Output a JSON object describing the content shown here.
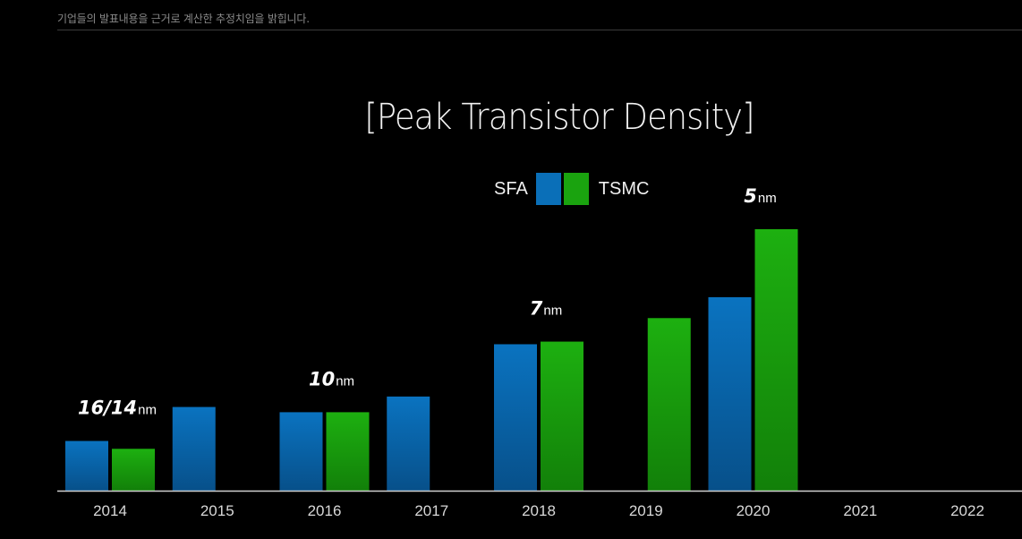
{
  "caption": "기업들의 발표내용을 근거로 계산한 추정치임을 밝힙니다.",
  "colors": {
    "background": "#000000",
    "sfa": "#0a6fb8",
    "tsmc": "#1aa30f",
    "axis": "#cfcfcf"
  },
  "legend": {
    "sfa_label": "SFA",
    "tsmc_label": "TSMC"
  },
  "chart_data": {
    "type": "bar",
    "title": "[Peak Transistor Density]",
    "categories": [
      "2014",
      "2015",
      "2016",
      "2017",
      "2018",
      "2019",
      "2020",
      "2021",
      "2022"
    ],
    "series": [
      {
        "name": "SFA",
        "values": [
          19,
          32,
          30,
          36,
          56,
          null,
          74,
          null,
          null
        ]
      },
      {
        "name": "TSMC",
        "values": [
          16,
          null,
          30,
          null,
          57,
          66,
          100,
          null,
          null
        ]
      }
    ],
    "ylim": [
      0,
      100
    ],
    "xlabel": "",
    "ylabel": "",
    "grid": false,
    "legend_position": "top-center",
    "annotations": [
      {
        "category": "2014",
        "value_label": "16/14",
        "unit": "nm"
      },
      {
        "category": "2016",
        "value_label": "10",
        "unit": "nm"
      },
      {
        "category": "2018",
        "value_label": "7",
        "unit": "nm"
      },
      {
        "category": "2020",
        "value_label": "5",
        "unit": "nm"
      }
    ]
  }
}
